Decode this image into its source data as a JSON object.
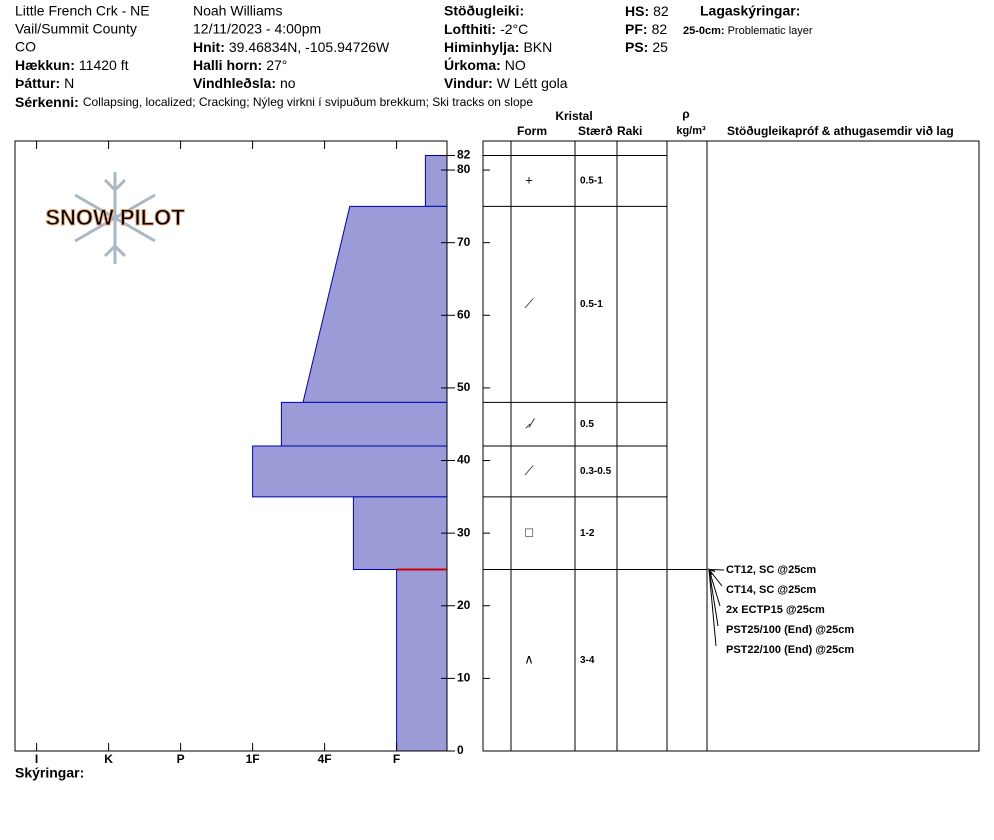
{
  "header": {
    "location": "Little French Crk - NE",
    "region": "Vail/Summit County",
    "state": "CO",
    "elevation": {
      "label": "Hækkun:",
      "value": "11420 ft"
    },
    "aspect": {
      "label": "Þáttur:",
      "value": "N"
    },
    "features": {
      "label": "Sérkenni:",
      "value": "Collapsing, localized;  Cracking;  Nýleg virkni í svipuðum brekkum;  Ski tracks on slope"
    },
    "observer": "Noah Williams",
    "datetime": "12/11/2023 - 4:00pm",
    "coords": {
      "label": "Hnit:",
      "value": "39.46834N, -105.94726W"
    },
    "slope": {
      "label": "Halli horn:",
      "value": "27°"
    },
    "wind_loading": {
      "label": "Vindhleðsla:",
      "value": "no"
    },
    "stability": "Stöðugleiki:",
    "air_temp": {
      "label": "Lofthiti:",
      "value": "-2°C"
    },
    "sky": {
      "label": "Himinhylja:",
      "value": "BKN"
    },
    "precip": {
      "label": "Úrkoma:",
      "value": "NO"
    },
    "wind": {
      "label": "Vindur:",
      "value": "W Létt gola"
    },
    "hs": {
      "label": "HS:",
      "value": 82
    },
    "pf": {
      "label": "PF:",
      "value": 82
    },
    "ps": {
      "label": "PS:",
      "value": 25
    },
    "layer_notes_title": "Lagaskýringar:",
    "layer_note": {
      "label": "25-0cm:",
      "value": "Problematic layer"
    }
  },
  "logo": "SNOW PILOT",
  "legend_title": "Skýringar:",
  "columns": {
    "crystal": "Kristal",
    "form": "Form",
    "size": "Stærð",
    "moisture": "Raki",
    "density_symbol": "ρ",
    "density_unit": "kg/m³",
    "comments": "Stöðugleikapróf & athugasemdir við lag"
  },
  "chart_data": {
    "type": "snow_profile",
    "ylim": [
      0,
      84
    ],
    "yticks": [
      0,
      10,
      20,
      30,
      40,
      50,
      60,
      70,
      80,
      82
    ],
    "xlim": [
      6.3,
      0.3
    ],
    "xticks": [
      {
        "value": 6,
        "label": "I"
      },
      {
        "value": 5,
        "label": "K"
      },
      {
        "value": 4,
        "label": "P"
      },
      {
        "value": 3,
        "label": "1F"
      },
      {
        "value": 2,
        "label": "4F"
      },
      {
        "value": 1,
        "label": "F"
      }
    ],
    "color": "#9b9bd7",
    "edge_color": "#0000b0",
    "layers": [
      {
        "top": 82,
        "bottom": 75,
        "hardness_top": 0.6,
        "hardness_bottom": 0.6,
        "form": "+",
        "size": "0.5-1"
      },
      {
        "top": 75,
        "bottom": 48,
        "hardness_top": 1.65,
        "hardness_bottom": 2.3,
        "form": "⟋",
        "size": "0.5-1"
      },
      {
        "top": 48,
        "bottom": 42,
        "hardness_top": 2.6,
        "hardness_bottom": 2.6,
        "form": "⸝⁄",
        "size": "0.5"
      },
      {
        "top": 42,
        "bottom": 35,
        "hardness_top": 3.0,
        "hardness_bottom": 3.0,
        "form": "⟋",
        "size": "0.3-0.5"
      },
      {
        "top": 35,
        "bottom": 25,
        "hardness_top": 1.6,
        "hardness_bottom": 1.6,
        "form": "□",
        "size": "1-2"
      },
      {
        "top": 25,
        "bottom": 0,
        "hardness_top": 1.0,
        "hardness_bottom": 1.0,
        "form": "∧",
        "size": "3-4"
      }
    ],
    "problem_layer": {
      "top": 25,
      "color": "#cc0000"
    },
    "stability_tests": [
      {
        "label": "CT12, SC @25cm",
        "depth": 25
      },
      {
        "label": "CT14, SC @25cm",
        "depth": 25
      },
      {
        "label": "2x ECTP15 @25cm",
        "depth": 25
      },
      {
        "label": "PST25/100 (End) @25cm",
        "depth": 25
      },
      {
        "label": "PST22/100 (End) @25cm",
        "depth": 25
      }
    ]
  }
}
